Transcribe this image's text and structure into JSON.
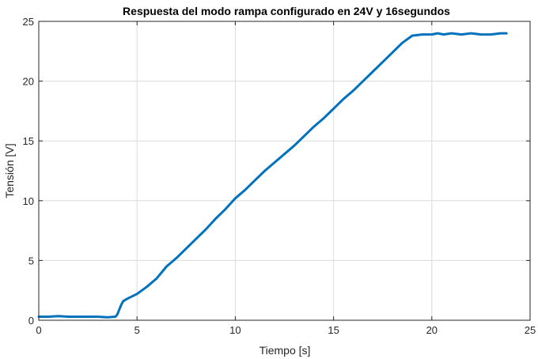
{
  "chart_data": {
    "type": "line",
    "title": "Respuesta del modo rampa configurado en 24V y 16segundos",
    "xlabel": "Tiempo [s]",
    "ylabel": "Tensión [V]",
    "xlim": [
      0,
      25
    ],
    "ylim": [
      0,
      25
    ],
    "xticks": [
      0,
      5,
      10,
      15,
      20,
      25
    ],
    "yticks": [
      0,
      5,
      10,
      15,
      20,
      25
    ],
    "xtick_labels": [
      "0",
      "5",
      "10",
      "15",
      "20",
      "25"
    ],
    "ytick_labels": [
      "0",
      "5",
      "10",
      "15",
      "20",
      "25"
    ],
    "grid": true,
    "legend": "none",
    "series": [
      {
        "color": "#0072BD",
        "x": [
          0,
          0.5,
          1,
          1.5,
          2,
          2.5,
          3,
          3.5,
          3.9,
          4.0,
          4.1,
          4.2,
          4.3,
          4.5,
          5.0,
          5.5,
          6.0,
          6.5,
          7.0,
          7.5,
          8.0,
          8.5,
          9.0,
          9.5,
          10.0,
          10.5,
          11.0,
          11.5,
          12.0,
          12.5,
          13.0,
          13.5,
          14.0,
          14.5,
          15.0,
          15.5,
          16.0,
          16.5,
          17.0,
          17.5,
          18.0,
          18.5,
          19.0,
          19.5,
          20.0,
          20.3,
          20.6,
          21.0,
          21.5,
          22.0,
          22.5,
          23.0,
          23.5,
          23.8
        ],
        "y": [
          0.3,
          0.3,
          0.35,
          0.3,
          0.3,
          0.3,
          0.3,
          0.25,
          0.3,
          0.5,
          0.9,
          1.3,
          1.6,
          1.8,
          2.2,
          2.8,
          3.5,
          4.5,
          5.2,
          6.0,
          6.8,
          7.6,
          8.5,
          9.3,
          10.2,
          10.9,
          11.7,
          12.5,
          13.2,
          13.9,
          14.6,
          15.4,
          16.2,
          16.9,
          17.7,
          18.5,
          19.2,
          20.0,
          20.8,
          21.6,
          22.4,
          23.2,
          23.8,
          23.9,
          23.9,
          24.0,
          23.9,
          24.0,
          23.9,
          24.0,
          23.9,
          23.9,
          24.0,
          24.0
        ]
      }
    ]
  }
}
